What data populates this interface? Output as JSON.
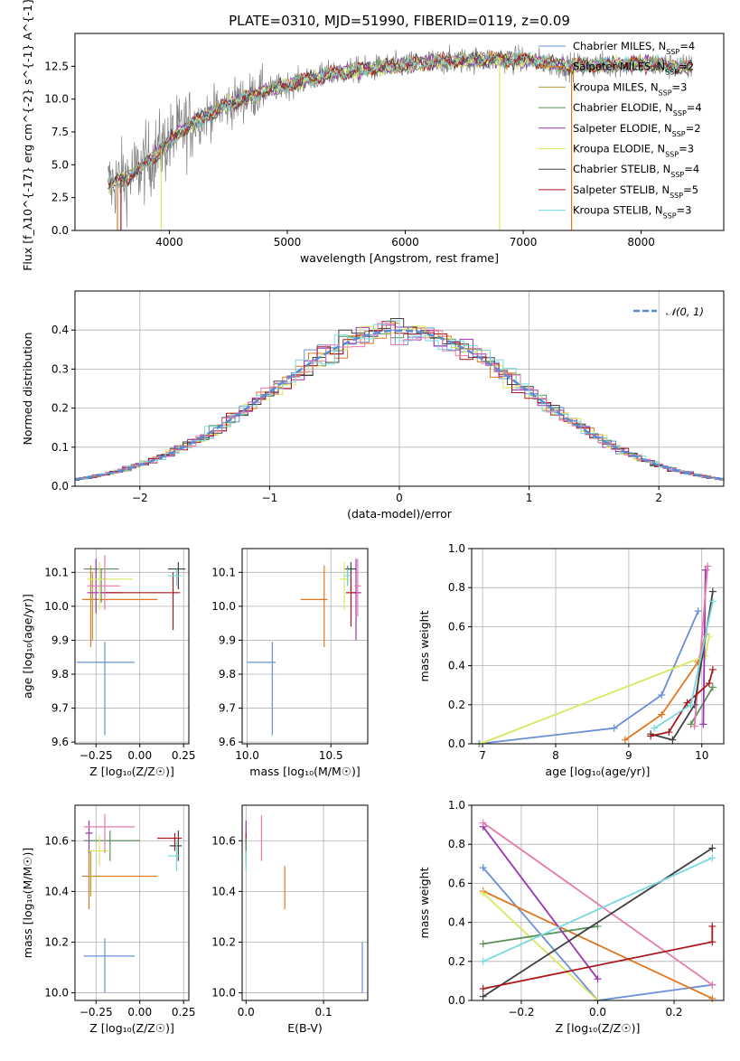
{
  "colors": {
    "blue": "#6a8fd8",
    "orange": "#e07820",
    "olive": "#b89a3a",
    "green": "#5a8f5a",
    "purple": "#9b35b0",
    "yellow": "#d8e860",
    "dark": "#404040",
    "red": "#a8181c",
    "cyan": "#78d8e0",
    "gray": "#808080",
    "pink": "#e67ab0",
    "grid": "#b0b0b0",
    "dgreen": "#3f8f3f"
  },
  "chart_data": [
    {
      "id": "spectrum",
      "type": "line",
      "title": "PLATE=0310, MJD=51990, FIBERID=0119, z=0.09",
      "xlabel": "wavelength [Angstrom, rest frame]",
      "ylabel": "Flux [f_λ10^{-17} erg cm^{-2} s^{-1} A^{-1}]",
      "xlim": [
        3200,
        8700
      ],
      "ylim": [
        0,
        15
      ],
      "xticks": [
        4000,
        5000,
        6000,
        7000,
        8000
      ],
      "yticks": [
        0.0,
        2.5,
        5.0,
        7.5,
        10.0,
        12.5
      ],
      "ytick_labels": [
        "0.0",
        "2.5",
        "5.0",
        "7.5",
        "10.0",
        "12.5"
      ],
      "grid": false,
      "legend_position": "top-right",
      "data_range": [
        3480,
        8430
      ],
      "continuum": [
        [
          3480,
          3.4
        ],
        [
          3700,
          4.3
        ],
        [
          3900,
          6.0
        ],
        [
          4100,
          7.6
        ],
        [
          4300,
          8.7
        ],
        [
          4500,
          9.6
        ],
        [
          4800,
          10.6
        ],
        [
          5100,
          11.3
        ],
        [
          5400,
          12.0
        ],
        [
          5800,
          12.4
        ],
        [
          6200,
          12.8
        ],
        [
          6600,
          13.0
        ],
        [
          7000,
          13.0
        ],
        [
          7400,
          12.5
        ],
        [
          7700,
          12.6
        ],
        [
          8000,
          12.7
        ],
        [
          8430,
          12.4
        ]
      ],
      "series": [
        {
          "name": "Chabrier MILES, N_{SSP}=4",
          "color_key": "blue"
        },
        {
          "name": "Salpeter MILES, N_{SSP}=2",
          "color_key": "orange"
        },
        {
          "name": "Kroupa MILES, N_{SSP}=3",
          "color_key": "olive"
        },
        {
          "name": "Chabrier ELODIE, N_{SSP}=4",
          "color_key": "green"
        },
        {
          "name": "Salpeter ELODIE, N_{SSP}=2",
          "color_key": "purple"
        },
        {
          "name": "Kroupa ELODIE, N_{SSP}=3",
          "color_key": "yellow"
        },
        {
          "name": "Chabrier STELIB, N_{SSP}=4",
          "color_key": "dark"
        },
        {
          "name": "Salpeter STELIB, N_{SSP}=5",
          "color_key": "red"
        },
        {
          "name": "Kroupa STELIB, N_{SSP}=3",
          "color_key": "cyan"
        }
      ]
    },
    {
      "id": "residuals",
      "type": "step",
      "xlabel": "(data-model)/error",
      "ylabel": "Normed distribution",
      "xlim": [
        -2.5,
        2.5
      ],
      "ylim": [
        0,
        0.5
      ],
      "xticks": [
        -2,
        -1,
        0,
        1,
        2
      ],
      "xtick_labels": [
        "−2",
        "−1",
        "0",
        "1",
        "2"
      ],
      "yticks": [
        0.0,
        0.1,
        0.2,
        0.3,
        0.4
      ],
      "ytick_labels": [
        "0.0",
        "0.1",
        "0.2",
        "0.3",
        "0.4"
      ],
      "grid": true,
      "legend_position": "top-right",
      "legend_label": "𝒩(0, 1)",
      "bin_width": 0.1,
      "series_colors": [
        "blue",
        "orange",
        "green",
        "purple",
        "yellow",
        "dark",
        "red",
        "cyan",
        "pink"
      ]
    },
    {
      "id": "age_vs_z",
      "type": "errorbar",
      "xlabel": "Z [log₁₀(Z/Z☉)]",
      "ylabel": "age  [log₁₀(age/yr)]",
      "xlim": [
        -0.37,
        0.28
      ],
      "ylim": [
        9.595,
        10.17
      ],
      "xticks": [
        -0.25,
        0.0,
        0.25
      ],
      "xtick_labels": [
        "−0.25",
        "0.00",
        "0.25"
      ],
      "yticks": [
        9.6,
        9.7,
        9.8,
        9.9,
        10.0,
        10.1
      ],
      "ytick_labels": [
        "9.6",
        "9.7",
        "9.8",
        "9.9",
        "10.0",
        "10.1"
      ],
      "grid": true,
      "points": [
        {
          "c": "blue",
          "x": -0.2,
          "xerr": [
            0.16,
            0.17
          ],
          "y": 9.835,
          "yerr": [
            0.215,
            0.06
          ]
        },
        {
          "c": "orange",
          "x": -0.28,
          "xerr": [
            0.05,
            0.38
          ],
          "y": 10.02,
          "yerr": [
            0.14,
            0.1
          ]
        },
        {
          "c": "olive",
          "x": -0.27,
          "xerr": [
            0.02,
            0.02
          ],
          "y": 10.02,
          "yerr": [
            0.12,
            0.08
          ]
        },
        {
          "c": "green",
          "x": -0.22,
          "xerr": [
            0.1,
            0.1
          ],
          "y": 10.11,
          "yerr": [
            0.1,
            0.0
          ]
        },
        {
          "c": "purple",
          "x": -0.25,
          "xerr": [
            0.05,
            0.15
          ],
          "y": 10.04,
          "yerr": [
            0.06,
            0.1
          ]
        },
        {
          "c": "yellow",
          "x": -0.23,
          "xerr": [
            0.07,
            0.19
          ],
          "y": 10.08,
          "yerr": [
            0.09,
            0.05
          ]
        },
        {
          "c": "dark",
          "x": 0.22,
          "xerr": [
            0.06,
            0.04
          ],
          "y": 10.11,
          "yerr": [
            0.06,
            0.02
          ]
        },
        {
          "c": "red",
          "x": 0.19,
          "xerr": [
            0.4,
            0.04
          ],
          "y": 10.04,
          "yerr": [
            0.11,
            0.06
          ]
        },
        {
          "c": "cyan",
          "x": 0.21,
          "xerr": [
            0.05,
            0.03
          ],
          "y": 10.09,
          "yerr": [
            0.03,
            0.02
          ]
        },
        {
          "c": "pink",
          "x": -0.2,
          "xerr": [
            0.1,
            0.09
          ],
          "y": 10.06,
          "yerr": [
            0.07,
            0.09
          ]
        }
      ]
    },
    {
      "id": "age_vs_mass",
      "type": "errorbar",
      "xlabel": "mass [log₁₀(M/M☉)]",
      "ylabel": "",
      "xlim": [
        9.97,
        10.72
      ],
      "ylim": [
        9.595,
        10.17
      ],
      "xticks": [
        10.0,
        10.5
      ],
      "xtick_labels": [
        "10.0",
        "10.5"
      ],
      "yticks": [
        9.6,
        9.7,
        9.8,
        9.9,
        10.0,
        10.1
      ],
      "ytick_labels": [
        "9.6",
        "9.7",
        "9.8",
        "9.9",
        "10.0",
        "10.1"
      ],
      "grid": true,
      "points": [
        {
          "c": "blue",
          "x": 10.15,
          "xerr": [
            0.15,
            0.02
          ],
          "y": 9.835,
          "yerr": [
            0.215,
            0.06
          ]
        },
        {
          "c": "orange",
          "x": 10.46,
          "xerr": [
            0.14,
            0.02
          ],
          "y": 10.02,
          "yerr": [
            0.14,
            0.1
          ]
        },
        {
          "c": "green",
          "x": 10.6,
          "xerr": [
            0.02,
            0.03
          ],
          "y": 10.11,
          "yerr": [
            0.05,
            0.01
          ]
        },
        {
          "c": "purple",
          "x": 10.65,
          "xerr": [
            0.03,
            0.03
          ],
          "y": 10.04,
          "yerr": [
            0.14,
            0.1
          ]
        },
        {
          "c": "yellow",
          "x": 10.58,
          "xerr": [
            0.03,
            0.03
          ],
          "y": 10.08,
          "yerr": [
            0.09,
            0.05
          ]
        },
        {
          "c": "dark",
          "x": 10.62,
          "xerr": [
            0.03,
            0.03
          ],
          "y": 10.11,
          "yerr": [
            0.07,
            0.02
          ]
        },
        {
          "c": "red",
          "x": 10.62,
          "xerr": [
            0.03,
            0.03
          ],
          "y": 10.04,
          "yerr": [
            0.1,
            0.06
          ]
        },
        {
          "c": "cyan",
          "x": 10.6,
          "xerr": [
            0.02,
            0.02
          ],
          "y": 10.09,
          "yerr": [
            0.03,
            0.02
          ]
        },
        {
          "c": "pink",
          "x": 10.66,
          "xerr": [
            0.02,
            0.02
          ],
          "y": 10.06,
          "yerr": [
            0.09,
            0.08
          ]
        }
      ]
    },
    {
      "id": "weight_vs_age",
      "type": "line",
      "xlabel": "age  [log₁₀(age/yr)]",
      "ylabel": "mass weight",
      "xlim": [
        6.85,
        10.3
      ],
      "ylim": [
        0,
        1
      ],
      "xticks": [
        7,
        8,
        9,
        10
      ],
      "xtick_labels": [
        "7",
        "8",
        "9",
        "10"
      ],
      "yticks": [
        0.0,
        0.2,
        0.4,
        0.6,
        0.8,
        1.0
      ],
      "ytick_labels": [
        "0.0",
        "0.2",
        "0.4",
        "0.6",
        "0.8",
        "1.0"
      ],
      "grid": true,
      "series": [
        {
          "c": "blue",
          "x": [
            6.95,
            8.8,
            9.45,
            9.95
          ],
          "y": [
            0.0,
            0.08,
            0.25,
            0.68
          ]
        },
        {
          "c": "orange",
          "x": [
            8.95,
            9.45,
            9.95,
            10.05
          ],
          "y": [
            0.02,
            0.15,
            0.42,
            0.56
          ]
        },
        {
          "c": "yellow",
          "x": [
            6.97,
            10.05,
            10.1
          ],
          "y": [
            0.0,
            0.45,
            0.55
          ]
        },
        {
          "c": "green",
          "x": [
            9.85,
            10.15
          ],
          "y": [
            0.1,
            0.29
          ]
        },
        {
          "c": "purple",
          "x": [
            10.02,
            10.05
          ],
          "y": [
            0.1,
            0.89
          ]
        },
        {
          "c": "pink",
          "x": [
            9.9,
            10.08
          ],
          "y": [
            0.09,
            0.91
          ]
        },
        {
          "c": "dark",
          "x": [
            9.3,
            9.6,
            9.9,
            10.15
          ],
          "y": [
            0.05,
            0.02,
            0.2,
            0.78
          ]
        },
        {
          "c": "red",
          "x": [
            9.3,
            9.55,
            9.8,
            10.1,
            10.15
          ],
          "y": [
            0.04,
            0.06,
            0.21,
            0.31,
            0.38
          ]
        },
        {
          "c": "cyan",
          "x": [
            9.35,
            9.85,
            10.15
          ],
          "y": [
            0.08,
            0.2,
            0.73
          ]
        }
      ]
    },
    {
      "id": "mass_vs_z",
      "type": "errorbar",
      "xlabel": "Z [log₁₀(Z/Z☉)]",
      "ylabel": "mass [log₁₀(M/M☉)]",
      "xlim": [
        -0.37,
        0.28
      ],
      "ylim": [
        9.97,
        10.74
      ],
      "xticks": [
        -0.25,
        0.0,
        0.25
      ],
      "xtick_labels": [
        "−0.25",
        "0.00",
        "0.25"
      ],
      "yticks": [
        10.0,
        10.2,
        10.4,
        10.6
      ],
      "ytick_labels": [
        "10.0",
        "10.2",
        "10.4",
        "10.6"
      ],
      "grid": true,
      "points": [
        {
          "c": "blue",
          "x": -0.2,
          "xerr": [
            0.12,
            0.17
          ],
          "y": 10.145,
          "yerr": [
            0.145,
            0.07
          ]
        },
        {
          "c": "orange",
          "x": -0.29,
          "xerr": [
            0.04,
            0.39
          ],
          "y": 10.46,
          "yerr": [
            0.13,
            0.1
          ]
        },
        {
          "c": "olive",
          "x": -0.28,
          "xerr": [
            0.02,
            0.02
          ],
          "y": 10.46,
          "yerr": [
            0.08,
            0.1
          ]
        },
        {
          "c": "green",
          "x": -0.17,
          "xerr": [
            0.15,
            0.17
          ],
          "y": 10.6,
          "yerr": [
            0.08,
            0.04
          ]
        },
        {
          "c": "purple",
          "x": -0.29,
          "xerr": [
            0.02,
            0.02
          ],
          "y": 10.63,
          "yerr": [
            0.08,
            0.05
          ]
        },
        {
          "c": "yellow",
          "x": -0.23,
          "xerr": [
            0.07,
            0.06
          ],
          "y": 10.56,
          "yerr": [
            0.06,
            0.06
          ]
        },
        {
          "c": "dark",
          "x": 0.22,
          "xerr": [
            0.05,
            0.02
          ],
          "y": 10.58,
          "yerr": [
            0.06,
            0.06
          ]
        },
        {
          "c": "red",
          "x": 0.2,
          "xerr": [
            0.1,
            0.04
          ],
          "y": 10.61,
          "yerr": [
            0.05,
            0.02
          ]
        },
        {
          "c": "cyan",
          "x": 0.21,
          "xerr": [
            0.05,
            0.02
          ],
          "y": 10.54,
          "yerr": [
            0.06,
            0.06
          ]
        },
        {
          "c": "pink",
          "x": -0.2,
          "xerr": [
            0.12,
            0.17
          ],
          "y": 10.655,
          "yerr": [
            0.105,
            0.05
          ]
        }
      ]
    },
    {
      "id": "mass_vs_ebv",
      "type": "errorbar",
      "xlabel": "E(B-V)",
      "ylabel": "",
      "xlim": [
        -0.005,
        0.157
      ],
      "ylim": [
        9.97,
        10.74
      ],
      "xticks": [
        0.0,
        0.1
      ],
      "xtick_labels": [
        "0.0",
        "0.1"
      ],
      "yticks": [
        10.0,
        10.2,
        10.4,
        10.6
      ],
      "ytick_labels": [
        "10.0",
        "10.2",
        "10.4",
        "10.6"
      ],
      "grid": true,
      "points": [
        {
          "c": "blue",
          "x": 0.15,
          "xerr": [
            0,
            0
          ],
          "y": 10.1,
          "yerr": [
            0.1,
            0.1
          ]
        },
        {
          "c": "orange",
          "x": 0.05,
          "xerr": [
            0,
            0
          ],
          "y": 10.42,
          "yerr": [
            0.09,
            0.08
          ]
        },
        {
          "c": "pink",
          "x": 0.02,
          "xerr": [
            0,
            0
          ],
          "y": 10.6,
          "yerr": [
            0.08,
            0.1
          ]
        },
        {
          "c": "purple",
          "x": 0.0,
          "xerr": [
            0,
            0
          ],
          "y": 10.62,
          "yerr": [
            0.08,
            0.06
          ]
        },
        {
          "c": "red",
          "x": 0.0,
          "xerr": [
            0,
            0
          ],
          "y": 10.61,
          "yerr": [
            0.02,
            0.02
          ]
        },
        {
          "c": "green",
          "x": 0.0,
          "xerr": [
            0,
            0
          ],
          "y": 10.56,
          "yerr": [
            0.05,
            0.05
          ]
        },
        {
          "c": "cyan",
          "x": 0.0,
          "xerr": [
            0,
            0
          ],
          "y": 10.52,
          "yerr": [
            0.04,
            0.04
          ]
        }
      ]
    },
    {
      "id": "weight_vs_z",
      "type": "line",
      "xlabel": "Z [log₁₀(Z/Z☉)]",
      "ylabel": "mass weight",
      "xlim": [
        -0.33,
        0.33
      ],
      "ylim": [
        0,
        1
      ],
      "xticks": [
        -0.2,
        0.0,
        0.2
      ],
      "xtick_labels": [
        "−0.2",
        "0.0",
        "0.2"
      ],
      "yticks": [
        0.0,
        0.2,
        0.4,
        0.6,
        0.8,
        1.0
      ],
      "ytick_labels": [
        "0.0",
        "0.2",
        "0.4",
        "0.6",
        "0.8",
        "1.0"
      ],
      "grid": true,
      "series": [
        {
          "c": "blue",
          "x": [
            -0.3,
            0.0,
            0.3
          ],
          "y": [
            0.68,
            0.0,
            0.08
          ]
        },
        {
          "c": "orange",
          "x": [
            -0.3,
            0.3
          ],
          "y": [
            0.56,
            0.01
          ]
        },
        {
          "c": "yellow",
          "x": [
            -0.3,
            0.0
          ],
          "y": [
            0.55,
            0.0
          ]
        },
        {
          "c": "green",
          "x": [
            -0.3,
            0.0
          ],
          "y": [
            0.29,
            0.38
          ]
        },
        {
          "c": "purple",
          "x": [
            -0.3,
            0.0
          ],
          "y": [
            0.89,
            0.11
          ]
        },
        {
          "c": "pink",
          "x": [
            -0.3,
            0.3
          ],
          "y": [
            0.91,
            0.08
          ]
        },
        {
          "c": "dark",
          "x": [
            -0.3,
            0.3
          ],
          "y": [
            0.02,
            0.78
          ]
        },
        {
          "c": "red",
          "x": [
            -0.3,
            0.3,
            0.3
          ],
          "y": [
            0.06,
            0.3,
            0.38
          ]
        },
        {
          "c": "cyan",
          "x": [
            -0.3,
            0.3
          ],
          "y": [
            0.2,
            0.73
          ]
        }
      ]
    }
  ]
}
